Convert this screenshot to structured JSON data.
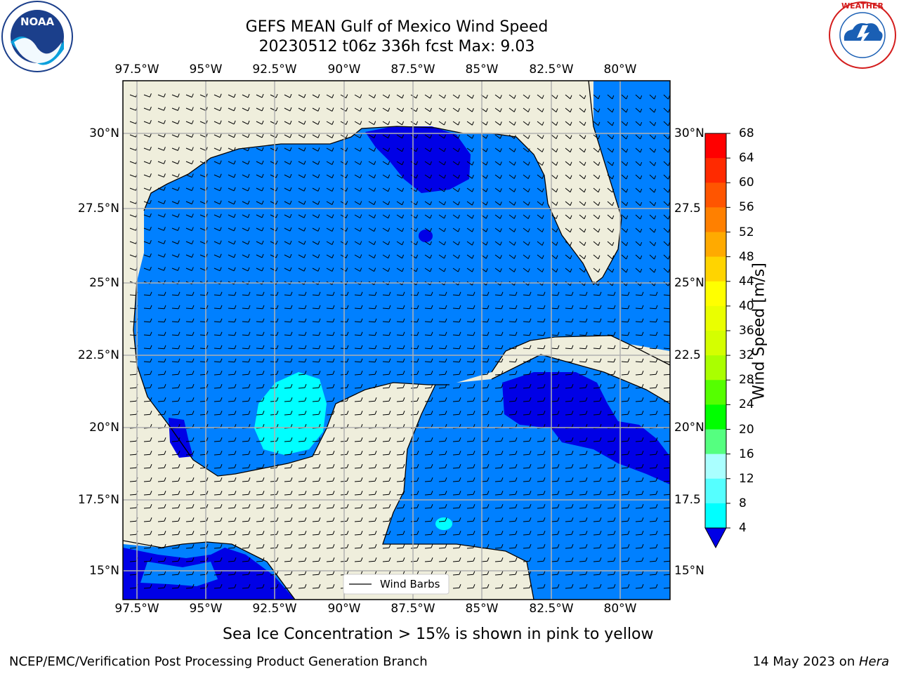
{
  "header": {
    "title_line1": "GEFS MEAN Gulf of Mexico Wind Speed",
    "title_line2": "20230512 t06z 336h fcst   Max: 9.03"
  },
  "logos": {
    "noara": "NOAA",
    "noaa_ring_text": "NATIONAL OCEANIC AND ATMOSPHERIC ADMINISTRATION · U.S. DEPARTMENT OF COMMERCE",
    "nws_ring_text": "NATIONAL WEATHER SERVICE"
  },
  "map": {
    "lon_ticks": [
      "97.5°W",
      "95°W",
      "92.5°W",
      "90°W",
      "87.5°W",
      "85°W",
      "82.5°W",
      "80°W"
    ],
    "lat_ticks_left": [
      "30°N",
      "27.5°N",
      "25°N",
      "22.5°N",
      "20°N",
      "17.5°N",
      "15°N"
    ],
    "lat_ticks_right": [
      "30°N",
      "27.5",
      "25°N",
      "22.5",
      "20°N",
      "17.5",
      "15°N"
    ],
    "legend_label": "Wind Barbs",
    "colors": {
      "land": "#efeedc",
      "ocean_4_8": "#0080ff",
      "ocean_lt_4": "#0000e6",
      "ocean_8_12": "#00ffff"
    }
  },
  "colorbar": {
    "label": "Wind Speed [m/s]",
    "ticks": [
      "68",
      "64",
      "60",
      "56",
      "52",
      "48",
      "44",
      "40",
      "36",
      "32",
      "28",
      "24",
      "20",
      "16",
      "12",
      "8",
      "4"
    ],
    "colors": [
      "#ff0000",
      "#ff2a00",
      "#ff5500",
      "#ff8000",
      "#ffaa00",
      "#ffd400",
      "#ffff00",
      "#eaff00",
      "#d4ff00",
      "#aaff00",
      "#55ff00",
      "#00ff00",
      "#55ff80",
      "#aaffff",
      "#55ffff",
      "#00ffff",
      "#0080ff"
    ],
    "under_color": "#0000e6"
  },
  "chart_data": {
    "type": "heatmap",
    "title": "GEFS MEAN Gulf of Mexico Wind Speed",
    "subtitle": "20230512 t06z 336h fcst   Max: 9.03",
    "xlabel": "",
    "ylabel": "",
    "lon_range": [
      -98.5,
      -78.7
    ],
    "lat_range": [
      14.0,
      31.8
    ],
    "colorbar_label": "Wind Speed [m/s]",
    "levels": [
      4,
      8,
      12,
      16,
      20,
      24,
      28,
      32,
      36,
      40,
      44,
      48,
      52,
      56,
      60,
      64,
      68
    ],
    "max": 9.03,
    "grid": true,
    "legend": "bottom-center"
  },
  "notes": {
    "sea_ice": "Sea Ice Concentration > 15% is shown in pink to yellow"
  },
  "footer": {
    "left": "NCEP/EMC/Verification Post Processing Product Generation Branch",
    "right_date": "14 May 2023 on ",
    "right_machine": "Hera"
  }
}
